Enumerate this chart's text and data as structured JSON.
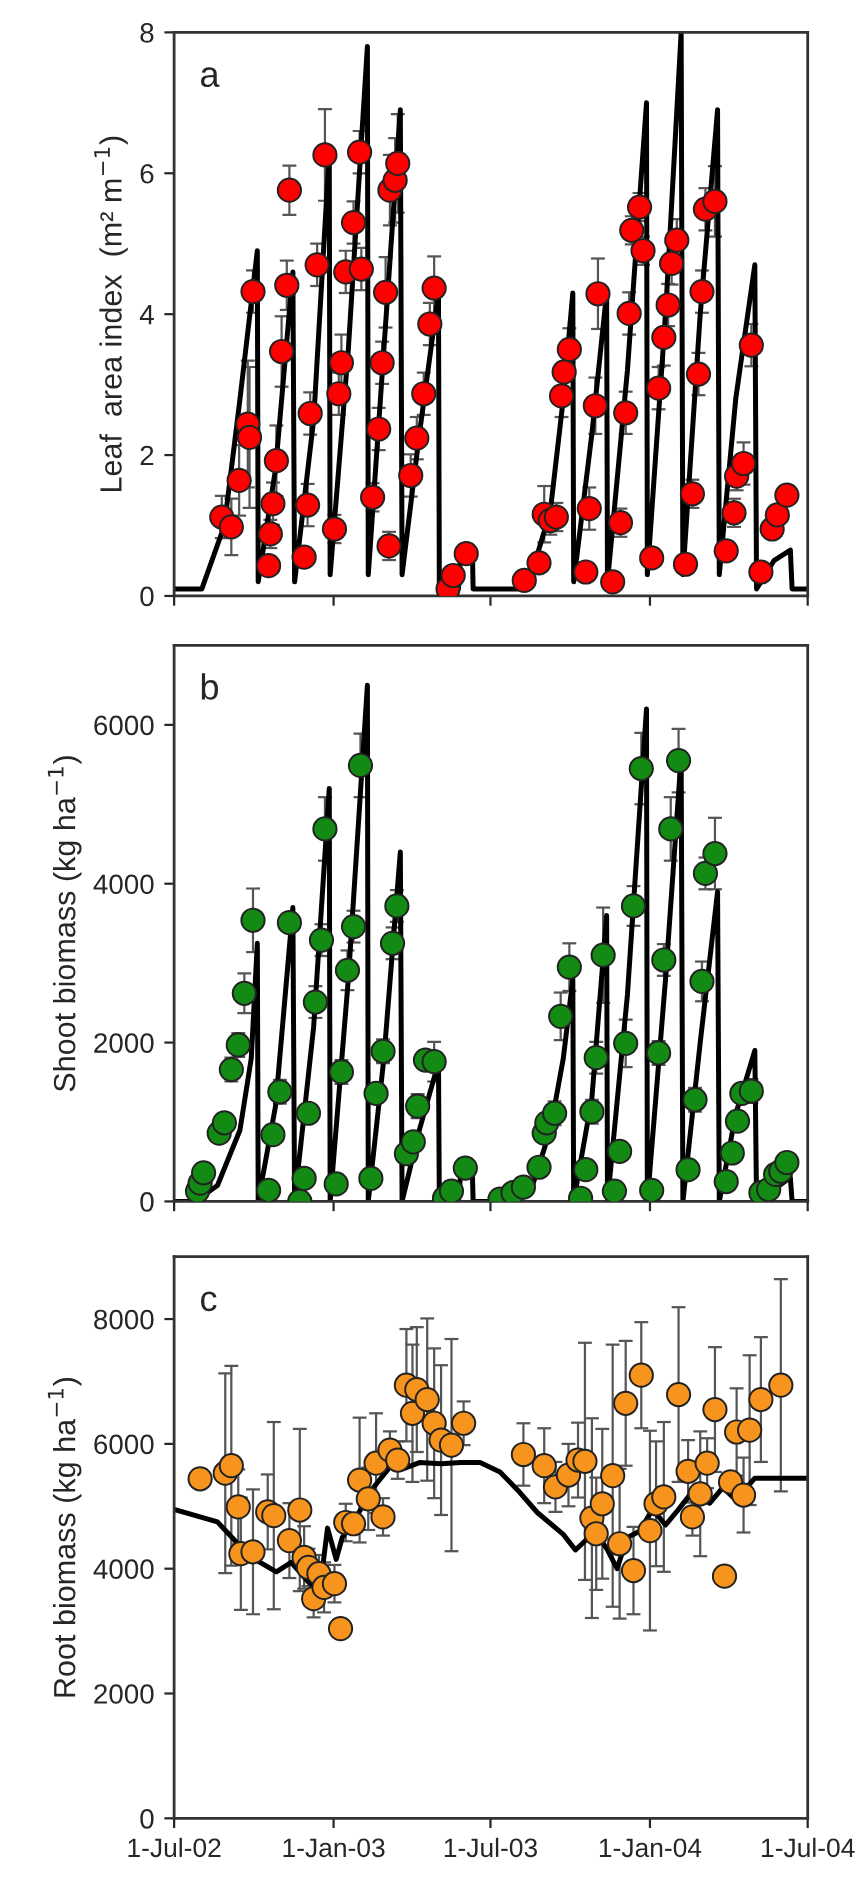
{
  "chart_data": [
    {
      "type": "line",
      "ylabel": "Leaf  area index  (m² m$^{−1}$)",
      "annotations": [
        "a"
      ],
      "tick_labels": "y",
      "xlim": [
        "2002-07-01",
        "2004-07-01"
      ],
      "xticks": [
        {
          "value": "2002-07-01",
          "label": null
        },
        {
          "value": "2003-01-01",
          "label": null
        },
        {
          "value": "2003-07-01",
          "label": null
        },
        {
          "value": "2004-01-01",
          "label": null
        },
        {
          "value": "2004-07-01",
          "label": null
        }
      ],
      "ylim": [
        0,
        8
      ],
      "yticks": [
        0,
        2,
        4,
        6,
        8
      ],
      "series": [
        {
          "type": "line",
          "color": "#000000",
          "line_style": "solid",
          "marker": "none",
          "x": [
            "2002-07-01",
            "2002-08-02",
            "2002-08-28",
            "2002-09-15",
            "2002-10-05",
            "2002-10-06",
            "2002-10-26",
            "2002-11-15",
            "2002-11-17",
            "2002-12-09",
            "2002-12-27",
            "2002-12-28",
            "2003-01-18",
            "2003-02-09",
            "2003-02-10",
            "2003-02-28",
            "2003-03-19",
            "2003-03-21",
            "2003-04-10",
            "2003-05-02",
            "2003-05-03",
            "2003-05-25",
            "2003-05-28",
            "2003-06-10",
            "2003-06-11",
            "2003-08-02",
            "2003-08-17",
            "2003-09-08",
            "2003-09-23",
            "2003-10-04",
            "2003-10-05",
            "2003-10-26",
            "2003-11-12",
            "2003-11-13",
            "2003-12-06",
            "2003-12-28",
            "2003-12-29",
            "2004-01-19",
            "2004-02-06",
            "2004-02-08",
            "2004-02-28",
            "2004-03-19",
            "2004-03-21",
            "2004-04-09",
            "2004-05-01",
            "2004-05-03",
            "2004-05-23",
            "2004-06-11",
            "2004-06-13",
            "2004-07-01"
          ],
          "values": [
            0.1,
            0.1,
            1.0,
            2.8,
            4.9,
            0.2,
            1.8,
            4.6,
            0.2,
            2.5,
            6.3,
            0.3,
            3.5,
            7.8,
            0.3,
            3.5,
            6.9,
            0.3,
            2.3,
            4.3,
            0.1,
            0.1,
            0.7,
            0.7,
            0.1,
            0.1,
            0.3,
            1.2,
            2.8,
            4.3,
            0.2,
            2.3,
            4.3,
            0.2,
            3.2,
            7.0,
            0.3,
            4.0,
            8.0,
            0.3,
            4.0,
            6.9,
            0.3,
            2.8,
            4.7,
            0.1,
            0.5,
            0.65,
            0.1,
            0.1
          ]
        },
        {
          "type": "scatter",
          "color": "#ff0000",
          "marker": "circle",
          "x": [
            "2002-08-25",
            "2002-09-05",
            "2002-09-14",
            "2002-09-24",
            "2002-09-26",
            "2002-09-30",
            "2002-10-18",
            "2002-10-20",
            "2002-10-23",
            "2002-10-27",
            "2002-11-02",
            "2002-11-08",
            "2002-11-11",
            "2002-11-28",
            "2002-12-02",
            "2002-12-05",
            "2002-12-13",
            "2002-12-22",
            "2003-01-02",
            "2003-01-07",
            "2003-01-10",
            "2003-01-15",
            "2003-01-24",
            "2003-01-31",
            "2003-02-02",
            "2003-02-15",
            "2003-02-22",
            "2003-02-26",
            "2003-03-02",
            "2003-03-06",
            "2003-03-07",
            "2003-03-13",
            "2003-03-16",
            "2003-03-31",
            "2003-04-07",
            "2003-04-15",
            "2003-04-22",
            "2003-04-27",
            "2003-05-13",
            "2003-05-19",
            "2003-06-03",
            "2003-08-09",
            "2003-08-26",
            "2003-09-01",
            "2003-09-08",
            "2003-09-15",
            "2003-09-21",
            "2003-09-24",
            "2003-09-30",
            "2003-10-19",
            "2003-10-23",
            "2003-10-30",
            "2003-11-02",
            "2003-11-19",
            "2003-11-28",
            "2003-12-04",
            "2003-12-08",
            "2003-12-11",
            "2003-12-20",
            "2003-12-24",
            "2004-01-03",
            "2004-01-11",
            "2004-01-17",
            "2004-01-22",
            "2004-01-26",
            "2004-02-01",
            "2004-02-11",
            "2004-02-19",
            "2004-02-26",
            "2004-03-01",
            "2004-03-05",
            "2004-03-16",
            "2004-03-29",
            "2004-04-07",
            "2004-04-10",
            "2004-04-18",
            "2004-04-27",
            "2004-05-08",
            "2004-05-21",
            "2004-05-27",
            "2004-06-07"
          ],
          "values": [
            1.12,
            0.98,
            1.64,
            2.44,
            2.25,
            4.32,
            0.43,
            0.88,
            1.31,
            1.92,
            3.47,
            4.41,
            5.76,
            0.55,
            1.29,
            2.59,
            4.7,
            6.26,
            0.95,
            2.87,
            3.31,
            4.6,
            5.3,
            6.3,
            4.64,
            1.4,
            2.37,
            3.31,
            4.31,
            0.71,
            5.76,
            5.9,
            6.14,
            1.71,
            2.24,
            2.87,
            3.86,
            4.37,
            0.1,
            0.29,
            0.6,
            0.22,
            0.47,
            1.16,
            1.07,
            1.12,
            2.84,
            3.18,
            3.5,
            0.34,
            1.24,
            2.7,
            4.29,
            0.2,
            1.04,
            2.6,
            4.01,
            5.19,
            5.52,
            4.9,
            0.54,
            2.95,
            3.67,
            4.13,
            4.72,
            5.05,
            0.45,
            1.45,
            3.15,
            4.32,
            5.49,
            5.6,
            0.64,
            1.18,
            1.7,
            1.88,
            3.56,
            0.34,
            0.95,
            1.15,
            1.43
          ],
          "errors": [
            0.3,
            0.4,
            0.5,
            0.9,
            1.0,
            0.3,
            null,
            0.2,
            0.3,
            0.5,
            0.5,
            0.35,
            0.35,
            null,
            0.3,
            0.3,
            0.3,
            0.65,
            0.2,
            0.3,
            0.4,
            0.3,
            0.3,
            0.3,
            0.3,
            0.2,
            0.3,
            0.3,
            0.5,
            0.2,
            0.5,
            0.6,
            0.7,
            0.3,
            0.3,
            0.3,
            0.3,
            0.45,
            null,
            null,
            null,
            null,
            null,
            0.4,
            0.2,
            0.2,
            0.3,
            null,
            0.3,
            null,
            0.3,
            0.4,
            0.5,
            null,
            0.2,
            0.3,
            0.3,
            0.2,
            0.2,
            0.2,
            null,
            0.3,
            0.4,
            0.3,
            0.3,
            0.3,
            null,
            0.2,
            0.3,
            0.3,
            0.3,
            0.5,
            null,
            0.2,
            0.2,
            0.3,
            0.3,
            null,
            null,
            null,
            null
          ]
        }
      ]
    },
    {
      "type": "line",
      "ylabel": "Shoot biomass (kg ha$^{−1}$)",
      "annotations": [
        "b"
      ],
      "tick_labels": "y",
      "xlim": [
        "2002-07-01",
        "2004-07-01"
      ],
      "xticks": [
        {
          "value": "2002-07-01",
          "label": null
        },
        {
          "value": "2003-01-01",
          "label": null
        },
        {
          "value": "2003-07-01",
          "label": null
        },
        {
          "value": "2004-01-01",
          "label": null
        },
        {
          "value": "2004-07-01",
          "label": null
        }
      ],
      "ylim": [
        0,
        7000
      ],
      "yticks": [
        0,
        2000,
        4000,
        6000
      ],
      "series": [
        {
          "type": "line",
          "color": "#000000",
          "line_style": "solid",
          "marker": "none",
          "x": [
            "2002-07-01",
            "2002-07-25",
            "2002-08-20",
            "2002-09-15",
            "2002-09-28",
            "2002-10-05",
            "2002-10-06",
            "2002-10-26",
            "2002-11-15",
            "2002-11-17",
            "2002-12-09",
            "2002-12-27",
            "2002-12-28",
            "2003-01-18",
            "2003-02-09",
            "2003-02-10",
            "2003-02-28",
            "2003-03-19",
            "2003-03-21",
            "2003-04-10",
            "2003-05-02",
            "2003-05-03",
            "2003-05-25",
            "2003-05-28",
            "2003-06-10",
            "2003-06-11",
            "2003-08-02",
            "2003-08-17",
            "2003-09-08",
            "2003-09-23",
            "2003-10-04",
            "2003-10-05",
            "2003-10-26",
            "2003-11-12",
            "2003-11-13",
            "2003-12-06",
            "2003-12-28",
            "2003-12-29",
            "2004-01-19",
            "2004-02-06",
            "2004-02-08",
            "2004-02-28",
            "2004-03-19",
            "2004-03-21",
            "2004-04-09",
            "2004-05-01",
            "2004-05-03",
            "2004-05-23",
            "2004-06-11",
            "2004-06-13",
            "2004-07-01"
          ],
          "values": [
            0,
            0,
            200,
            900,
            1800,
            3250,
            0,
            1200,
            3700,
            0,
            2200,
            5200,
            0,
            2800,
            6500,
            0,
            1800,
            4400,
            0,
            900,
            1750,
            0,
            0,
            400,
            400,
            0,
            0,
            150,
            900,
            1800,
            2800,
            0,
            1300,
            3600,
            0,
            2600,
            6200,
            0,
            2800,
            5600,
            0,
            2000,
            3900,
            0,
            1100,
            1900,
            0,
            150,
            300,
            0,
            0
          ]
        },
        {
          "type": "scatter",
          "color": "#138a13",
          "marker": "circle",
          "x": [
            "2002-07-28",
            "2002-07-31",
            "2002-08-04",
            "2002-08-22",
            "2002-08-28",
            "2002-09-05",
            "2002-09-13",
            "2002-09-20",
            "2002-09-30",
            "2002-10-18",
            "2002-10-23",
            "2002-10-31",
            "2002-11-11",
            "2002-11-23",
            "2002-11-28",
            "2002-12-03",
            "2002-12-11",
            "2002-12-18",
            "2002-12-22",
            "2003-01-04",
            "2003-01-10",
            "2003-01-17",
            "2003-01-24",
            "2003-02-01",
            "2003-02-13",
            "2003-02-19",
            "2003-02-27",
            "2003-03-10",
            "2003-03-15",
            "2003-03-26",
            "2003-04-03",
            "2003-04-08",
            "2003-04-17",
            "2003-04-27",
            "2003-05-09",
            "2003-05-17",
            "2003-06-02",
            "2003-07-12",
            "2003-07-27",
            "2003-08-08",
            "2003-08-26",
            "2003-09-01",
            "2003-09-04",
            "2003-09-13",
            "2003-09-20",
            "2003-09-30",
            "2003-10-13",
            "2003-10-19",
            "2003-10-26",
            "2003-10-31",
            "2003-11-08",
            "2003-11-21",
            "2003-11-27",
            "2003-12-04",
            "2003-12-13",
            "2003-12-22",
            "2004-01-03",
            "2004-01-11",
            "2004-01-17",
            "2004-01-25",
            "2004-02-03",
            "2004-02-14",
            "2004-02-22",
            "2004-03-01",
            "2004-03-05",
            "2004-03-16",
            "2004-03-29",
            "2004-04-05",
            "2004-04-11",
            "2004-04-16",
            "2004-04-27",
            "2004-05-08",
            "2004-05-17",
            "2004-05-25",
            "2004-05-31",
            "2004-06-07"
          ],
          "values": [
            130,
            230,
            360,
            860,
            990,
            1660,
            1970,
            2620,
            3540,
            140,
            840,
            1380,
            3510,
            0,
            290,
            1110,
            2510,
            3290,
            4690,
            220,
            1630,
            2910,
            3460,
            5490,
            290,
            1360,
            1890,
            3250,
            3720,
            600,
            750,
            1200,
            1780,
            1760,
            40,
            130,
            420,
            30,
            110,
            180,
            430,
            860,
            990,
            1110,
            2330,
            2950,
            40,
            400,
            1130,
            1810,
            3100,
            130,
            630,
            1990,
            3720,
            5450,
            140,
            1870,
            3040,
            4690,
            5550,
            400,
            1280,
            2770,
            4130,
            4380,
            250,
            610,
            1010,
            1360,
            1390,
            110,
            150,
            340,
            380,
            490
          ],
          "errors": [
            null,
            null,
            null,
            null,
            null,
            150,
            150,
            250,
            400,
            null,
            null,
            150,
            null,
            null,
            null,
            null,
            200,
            200,
            400,
            null,
            150,
            250,
            200,
            400,
            null,
            null,
            150,
            200,
            200,
            null,
            null,
            150,
            null,
            250,
            null,
            null,
            null,
            null,
            null,
            null,
            null,
            null,
            null,
            150,
            300,
            300,
            null,
            null,
            150,
            200,
            600,
            null,
            null,
            300,
            250,
            450,
            null,
            150,
            200,
            400,
            400,
            null,
            150,
            250,
            200,
            450,
            null,
            null,
            null,
            null,
            150,
            null,
            null,
            null,
            null,
            null
          ]
        }
      ]
    },
    {
      "type": "line",
      "ylabel": "Root biomass (kg ha$^{−1}$)",
      "annotations": [
        "c"
      ],
      "xlim": [
        "2002-07-01",
        "2004-07-01"
      ],
      "xticks": [
        {
          "value": "2002-07-01",
          "label": "1-Jul-02"
        },
        {
          "value": "2003-01-01",
          "label": "1-Jan-03"
        },
        {
          "value": "2003-07-01",
          "label": "1-Jul-03"
        },
        {
          "value": "2004-01-01",
          "label": "1-Jan-04"
        },
        {
          "value": "2004-07-01",
          "label": "1-Jul-04"
        }
      ],
      "ylim": [
        0,
        9000
      ],
      "yticks": [
        0,
        2000,
        4000,
        6000,
        8000
      ],
      "series": [
        {
          "type": "line",
          "color": "#000000",
          "line_style": "solid",
          "marker": "none",
          "x": [
            "2002-07-01",
            "2002-08-20",
            "2002-09-26",
            "2002-10-27",
            "2002-11-13",
            "2002-12-02",
            "2002-12-16",
            "2002-12-25",
            "2003-01-04",
            "2003-01-11",
            "2003-01-26",
            "2003-02-16",
            "2003-03-11",
            "2003-03-22",
            "2003-04-10",
            "2003-05-05",
            "2003-05-28",
            "2003-06-19",
            "2003-07-12",
            "2003-08-02",
            "2003-08-24",
            "2003-09-23",
            "2003-10-07",
            "2003-10-30",
            "2003-11-13",
            "2003-11-24",
            "2003-12-06",
            "2003-12-20",
            "2004-01-04",
            "2004-01-19",
            "2004-02-03",
            "2004-02-17",
            "2004-03-10",
            "2004-03-25",
            "2004-04-09",
            "2004-05-01",
            "2004-05-23",
            "2004-07-01"
          ],
          "values": [
            4950,
            4750,
            4200,
            3950,
            4100,
            3800,
            3650,
            4650,
            4150,
            4500,
            4800,
            5300,
            5700,
            5600,
            5700,
            5680,
            5700,
            5700,
            5550,
            5250,
            4900,
            4550,
            4300,
            4600,
            4300,
            4000,
            4500,
            4600,
            4950,
            4700,
            4950,
            5200,
            5050,
            5300,
            5100,
            5450,
            5450,
            5450
          ]
        },
        {
          "type": "scatter",
          "color": "#f7941d",
          "marker": "circle",
          "x": [
            "2002-07-31",
            "2002-08-29",
            "2002-09-05",
            "2002-09-13",
            "2002-09-16",
            "2002-09-30",
            "2002-10-17",
            "2002-10-24",
            "2002-11-11",
            "2002-11-23",
            "2002-11-28",
            "2002-12-03",
            "2002-12-09",
            "2002-12-15",
            "2002-12-21",
            "2003-01-02",
            "2003-01-09",
            "2003-01-15",
            "2003-01-24",
            "2003-01-31",
            "2003-02-10",
            "2003-02-19",
            "2003-02-27",
            "2003-03-07",
            "2003-03-16",
            "2003-03-26",
            "2003-04-02",
            "2003-04-07",
            "2003-04-19",
            "2003-04-27",
            "2003-05-05",
            "2003-05-17",
            "2003-05-31",
            "2003-08-08",
            "2003-09-01",
            "2003-09-14",
            "2003-09-29",
            "2003-10-10",
            "2003-10-18",
            "2003-10-26",
            "2003-10-31",
            "2003-11-07",
            "2003-11-19",
            "2003-11-27",
            "2003-12-04",
            "2003-12-13",
            "2003-12-22",
            "2004-01-01",
            "2004-01-08",
            "2004-01-17",
            "2004-02-03",
            "2004-02-14",
            "2004-02-19",
            "2004-02-28",
            "2004-03-07",
            "2004-03-16",
            "2004-03-27",
            "2004-04-03",
            "2004-04-10",
            "2004-04-18",
            "2004-04-25",
            "2004-05-08",
            "2004-05-31"
          ],
          "values": [
            5440,
            5530,
            5650,
            4990,
            4240,
            4270,
            4910,
            4850,
            4450,
            4940,
            4180,
            4020,
            3520,
            3920,
            3700,
            3760,
            3040,
            4740,
            4720,
            5420,
            5120,
            5690,
            4830,
            5900,
            5740,
            6940,
            6490,
            6870,
            6710,
            6330,
            6060,
            5980,
            6330,
            5830,
            5650,
            5310,
            5500,
            5740,
            5720,
            4810,
            4560,
            5040,
            5490,
            4400,
            6650,
            3970,
            7100,
            4610,
            5040,
            5150,
            6790,
            5560,
            4830,
            5200,
            5690,
            6550,
            3880,
            5390,
            6190,
            5180,
            6220,
            6710,
            6940
          ],
          "errors": [
            0,
            1600,
            1600,
            600,
            900,
            1000,
            600,
            1500,
            600,
            1300,
            500,
            300,
            300,
            300,
            400,
            300,
            0,
            300,
            null,
            1000,
            500,
            800,
            300,
            300,
            300,
            900,
            1100,
            1000,
            1300,
            1200,
            1200,
            1700,
            350,
            500,
            600,
            400,
            500,
            600,
            1900,
            1600,
            900,
            1200,
            2100,
            1200,
            1000,
            700,
            850,
            1600,
            1000,
            1200,
            1400,
            500,
            300,
            1000,
            400,
            1000,
            100,
            0,
            700,
            600,
            1200,
            1000,
            1700
          ]
        }
      ]
    }
  ]
}
